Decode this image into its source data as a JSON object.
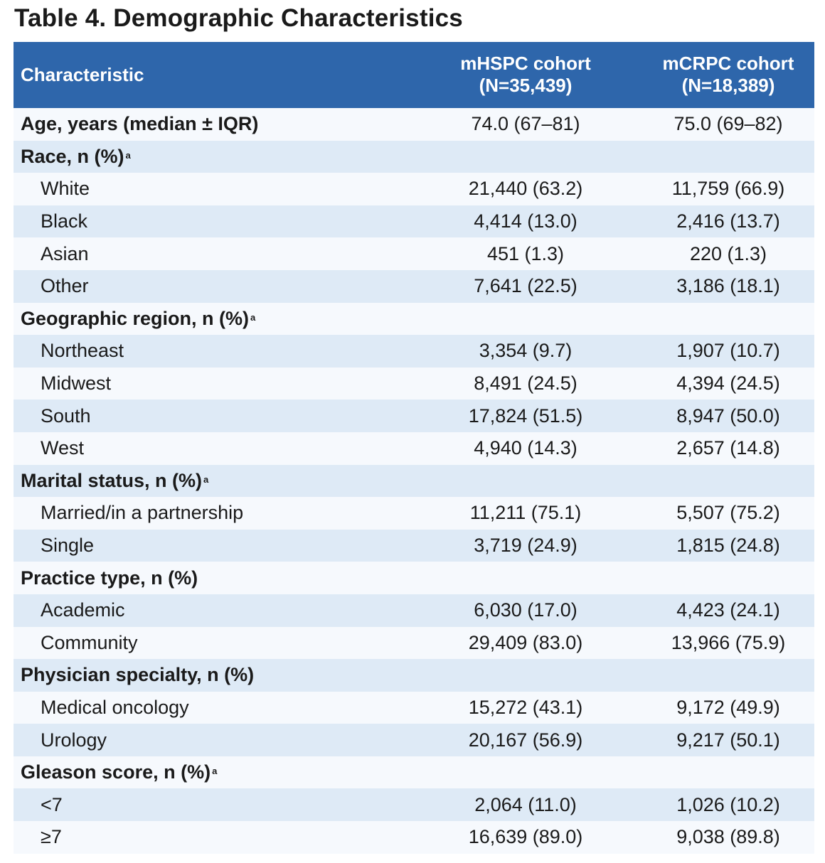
{
  "title": "Table 4. Demographic Characteristics",
  "columns": {
    "characteristic": "Characteristic",
    "col1_line1": "mHSPC cohort",
    "col1_line2": "(N=35,439)",
    "col2_line1": "mCRPC cohort",
    "col2_line2": "(N=18,389)"
  },
  "rows": [
    {
      "label": "Age, years (median ± IQR)",
      "v1": "74.0 (67–81)",
      "v2": "75.0 (69–82)"
    },
    {
      "label": "Race, n (%)",
      "sup": "a"
    },
    {
      "label": "White",
      "v1": "21,440 (63.2)",
      "v2": "11,759 (66.9)"
    },
    {
      "label": "Black",
      "v1": "4,414 (13.0)",
      "v2": "2,416 (13.7)"
    },
    {
      "label": "Asian",
      "v1": "451 (1.3)",
      "v2": "220 (1.3)"
    },
    {
      "label": "Other",
      "v1": "7,641 (22.5)",
      "v2": "3,186 (18.1)"
    },
    {
      "label": "Geographic region, n (%)",
      "sup": "a"
    },
    {
      "label": "Northeast",
      "v1": "3,354 (9.7)",
      "v2": "1,907 (10.7)"
    },
    {
      "label": "Midwest",
      "v1": "8,491 (24.5)",
      "v2": "4,394 (24.5)"
    },
    {
      "label": "South",
      "v1": "17,824 (51.5)",
      "v2": "8,947 (50.0)"
    },
    {
      "label": "West",
      "v1": "4,940 (14.3)",
      "v2": "2,657 (14.8)"
    },
    {
      "label": "Marital status, n (%)",
      "sup": "a"
    },
    {
      "label": "Married/in a partnership",
      "v1": "11,211 (75.1)",
      "v2": "5,507 (75.2)"
    },
    {
      "label": "Single",
      "v1": "3,719 (24.9)",
      "v2": "1,815 (24.8)"
    },
    {
      "label": "Practice type, n (%)"
    },
    {
      "label": "Academic",
      "v1": "6,030 (17.0)",
      "v2": "4,423 (24.1)"
    },
    {
      "label": "Community",
      "v1": "29,409 (83.0)",
      "v2": "13,966 (75.9)"
    },
    {
      "label": "Physician specialty, n (%)"
    },
    {
      "label": "Medical oncology",
      "v1": "15,272 (43.1)",
      "v2": "9,172 (49.9)"
    },
    {
      "label": "Urology",
      "v1": "20,167 (56.9)",
      "v2": "9,217 (50.1)"
    },
    {
      "label": "Gleason score, n (%)",
      "sup": "a"
    },
    {
      "label": "<7",
      "v1": "2,064 (11.0)",
      "v2": "1,026 (10.2)"
    },
    {
      "label": "≥7",
      "v1": "16,639 (89.0)",
      "v2": "9,038 (89.8)"
    }
  ]
}
